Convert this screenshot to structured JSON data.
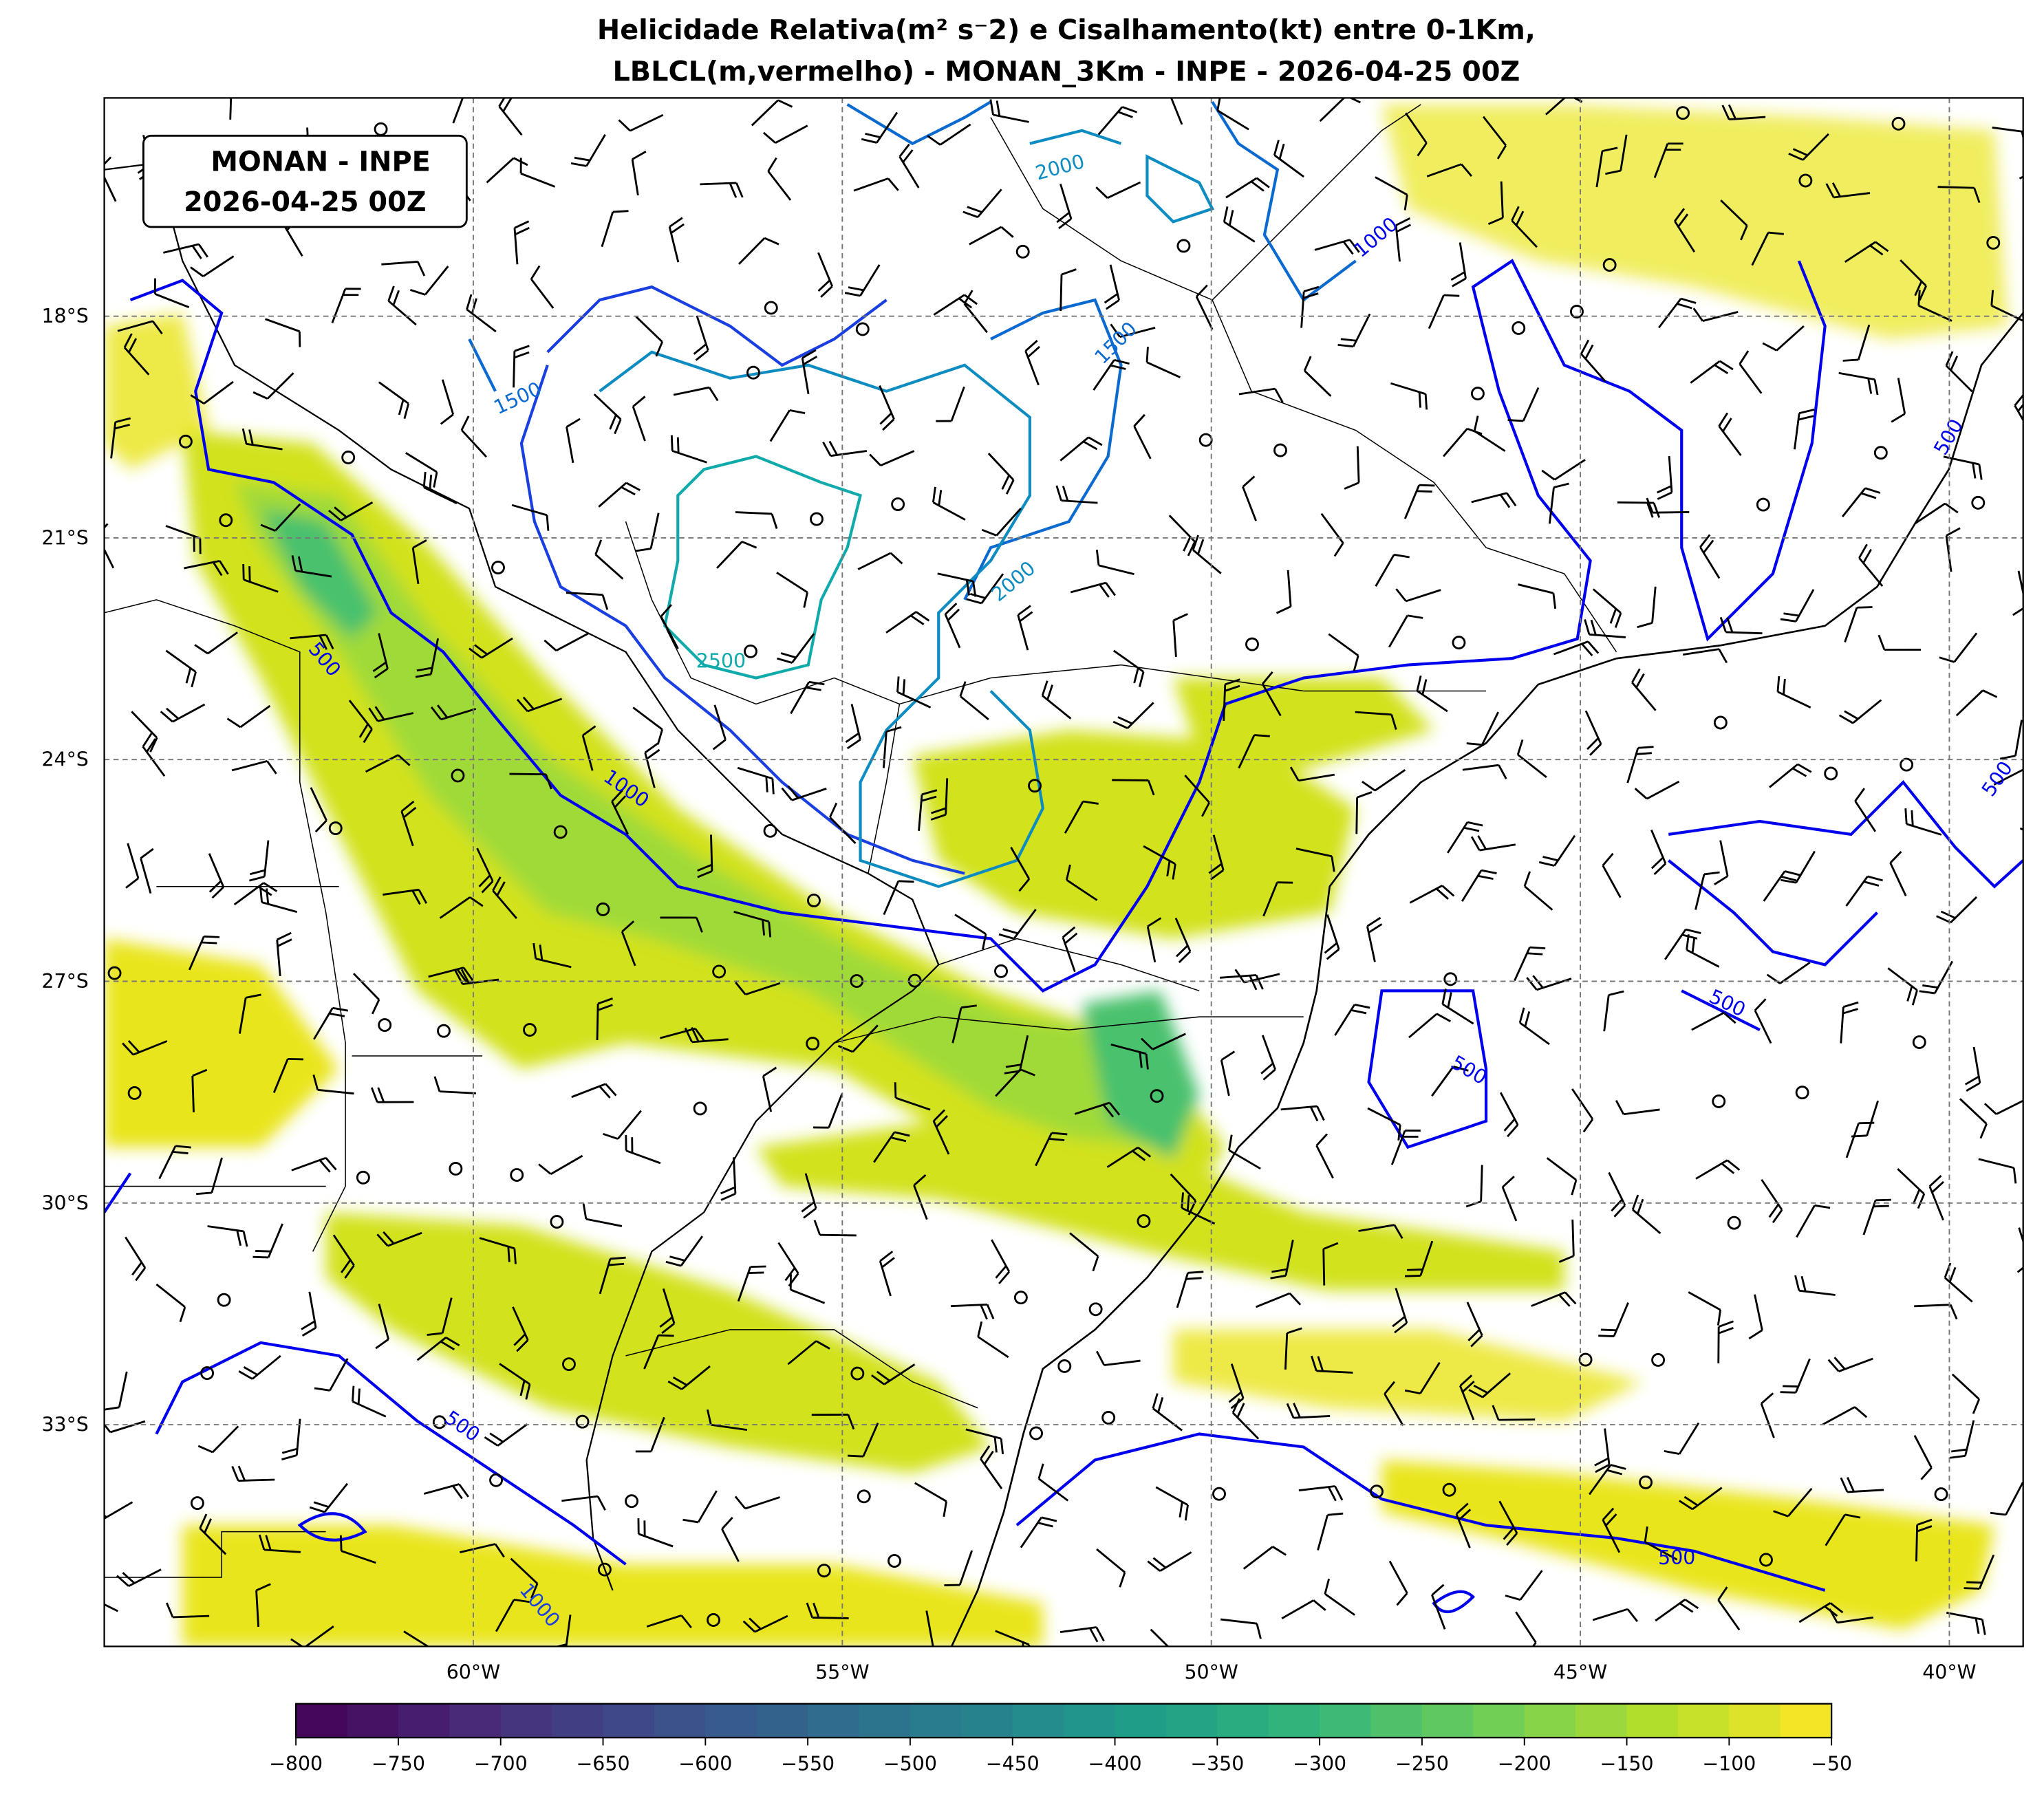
{
  "title": {
    "line1": "Helicidade Relativa(m² s⁻2) e Cisalhamento(kt) entre 0-1Km,",
    "line2": "LBLCL(m,vermelho) - MONAN_3Km - INPE - 2026-04-25 00Z"
  },
  "annotation": {
    "line1": "MONAN - INPE",
    "line2": "2026-04-25 00Z"
  },
  "chart_data": {
    "type": "heatmap",
    "projection": "PlateCarree",
    "extent": {
      "lon": [
        -65,
        -39
      ],
      "lat": [
        -36,
        -14.5
      ]
    },
    "grid": true,
    "lat_ticks": [
      "18°S",
      "21°S",
      "24°S",
      "27°S",
      "30°S",
      "33°S"
    ],
    "lon_ticks": [
      "60°W",
      "55°W",
      "50°W",
      "45°W",
      "40°W"
    ],
    "shaded_field": "Helicidade Relativa 0-1Km (m² s⁻²)",
    "colormap": "viridis",
    "colorbar": {
      "orientation": "horizontal",
      "placement": "bottom",
      "range": [
        -800,
        -50
      ],
      "level_step": 25,
      "tick_labels": [
        "−800",
        "−750",
        "−700",
        "−650",
        "−600",
        "−550",
        "−500",
        "−450",
        "−400",
        "−350",
        "−300",
        "−250",
        "−200",
        "−150",
        "−100",
        "−50"
      ]
    },
    "contours": {
      "field": "LBLCL (m)",
      "labels_shown": [
        "500",
        "1000",
        "1500",
        "2000",
        "2500"
      ],
      "colors": {
        "500": "#0000ee",
        "1000": "#1a3fe0",
        "1500": "#0a6ad0",
        "2000": "#0c8cc0",
        "2500": "#10aaaa"
      }
    },
    "vectors": {
      "type": "wind barbs",
      "field": "Cisalhamento 0-1Km (kt)",
      "color": "#000000"
    }
  }
}
